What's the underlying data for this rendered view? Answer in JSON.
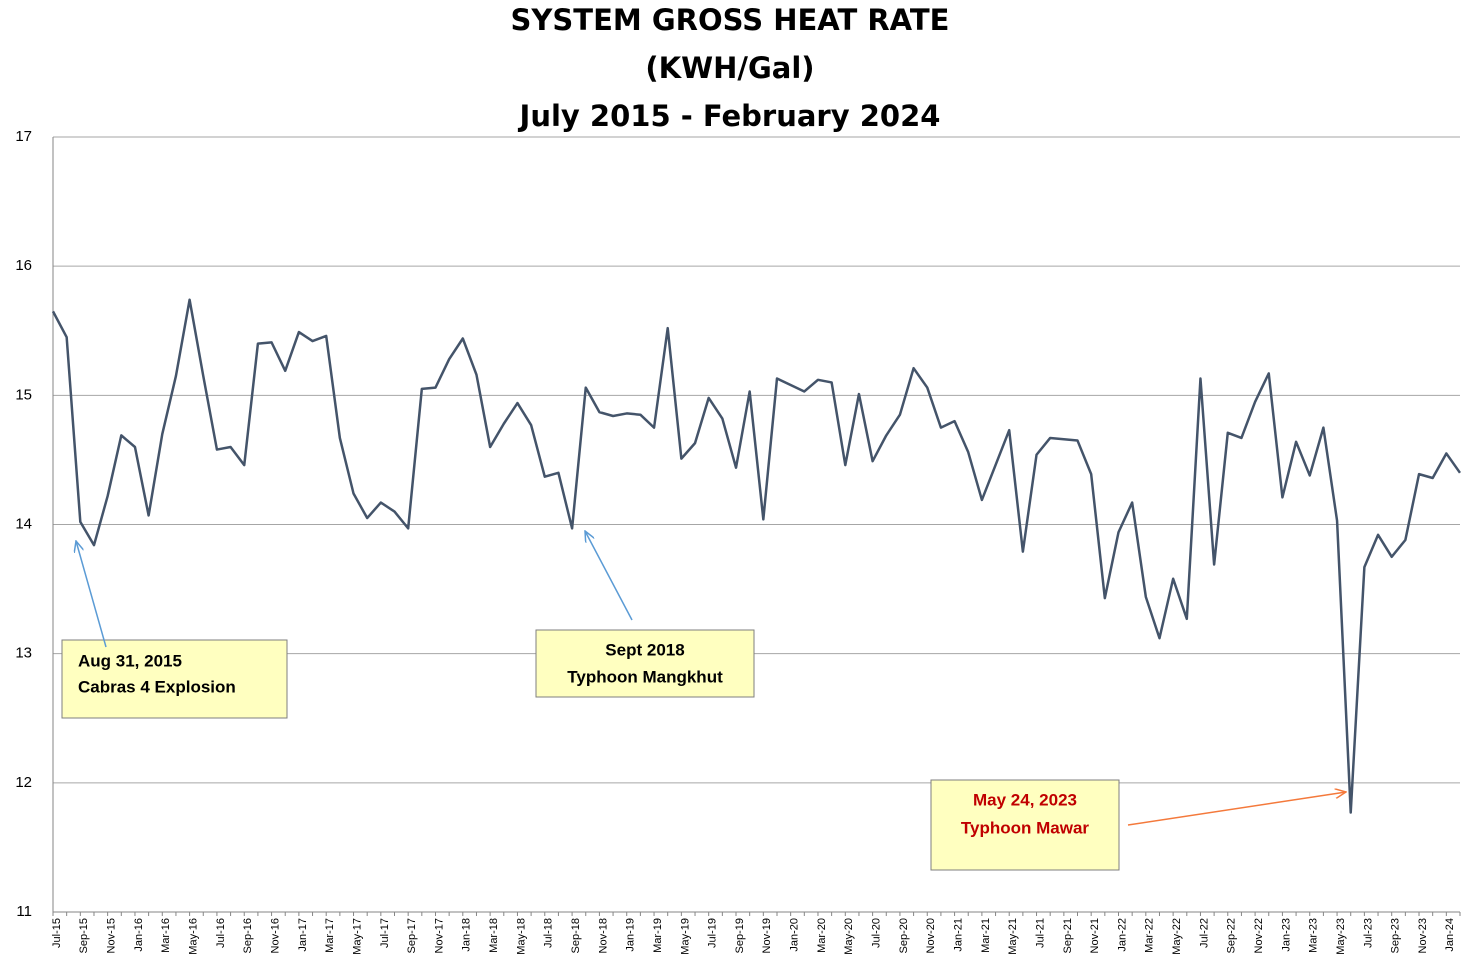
{
  "chart_data": {
    "type": "line",
    "title": [
      "SYSTEM GROSS HEAT RATE",
      "(KWH/Gal)",
      "July 2015 - February 2024"
    ],
    "categories": [
      "Jul-15",
      null,
      "Sep-15",
      null,
      "Nov-15",
      null,
      "Jan-16",
      null,
      "Mar-16",
      null,
      "May-16",
      null,
      "Jul-16",
      null,
      "Sep-16",
      null,
      "Nov-16",
      null,
      "Jan-17",
      null,
      "Mar-17",
      null,
      "May-17",
      null,
      "Jul-17",
      null,
      "Sep-17",
      null,
      "Nov-17",
      null,
      "Jan-18",
      null,
      "Mar-18",
      null,
      "May-18",
      null,
      "Jul-18",
      null,
      "Sep-18",
      null,
      "Nov-18",
      null,
      "Jan-19",
      null,
      "Mar-19",
      null,
      "May-19",
      null,
      "Jul-19",
      null,
      "Sep-19",
      null,
      "Nov-19",
      null,
      "Jan-20",
      null,
      "Mar-20",
      null,
      "May-20",
      null,
      "Jul-20",
      null,
      "Sep-20",
      null,
      "Nov-20",
      null,
      "Jan-21",
      null,
      "Mar-21",
      null,
      "May-21",
      null,
      "Jul-21",
      null,
      "Sep-21",
      null,
      "Nov-21",
      null,
      "Jan-22",
      null,
      "Mar-22",
      null,
      "May-22",
      null,
      "Jul-22",
      null,
      "Sep-22",
      null,
      "Nov-22",
      null,
      "Jan-23",
      null,
      "Mar-23",
      null,
      "May-23",
      null,
      "Jul-23",
      null,
      "Sep-23",
      null,
      "Nov-23",
      null,
      "Jan-24",
      null
    ],
    "series": [
      {
        "color": "#44546a",
        "values": [
          15.65,
          15.45,
          14.02,
          13.84,
          14.22,
          14.69,
          14.6,
          14.07,
          14.7,
          15.15,
          15.74,
          15.15,
          14.58,
          14.6,
          14.46,
          15.4,
          15.41,
          15.19,
          15.49,
          15.42,
          15.46,
          14.67,
          14.24,
          14.05,
          14.17,
          14.1,
          13.97,
          15.05,
          15.06,
          15.28,
          15.44,
          15.16,
          14.6,
          14.78,
          14.94,
          14.77,
          14.37,
          14.4,
          13.97,
          15.06,
          14.87,
          14.84,
          14.86,
          14.85,
          14.75,
          15.52,
          14.51,
          14.63,
          14.98,
          14.82,
          14.44,
          15.03,
          14.04,
          15.13,
          15.08,
          15.03,
          15.12,
          15.1,
          14.46,
          15.01,
          14.49,
          14.69,
          14.85,
          15.21,
          15.06,
          14.75,
          14.8,
          14.56,
          14.19,
          14.46,
          14.73,
          13.79,
          14.54,
          14.67,
          14.66,
          14.65,
          14.39,
          13.43,
          13.94,
          14.17,
          13.44,
          13.12,
          13.58,
          13.27,
          15.13,
          13.69,
          14.71,
          14.67,
          14.95,
          15.17,
          14.21,
          14.64,
          14.38,
          14.75,
          14.03,
          11.77,
          13.67,
          13.92,
          13.75,
          13.88,
          14.39,
          14.36,
          14.55,
          14.4
        ]
      }
    ],
    "ylim": [
      11,
      17
    ],
    "yticks": [
      11,
      12,
      13,
      14,
      15,
      16,
      17
    ],
    "grid": true,
    "annotations": [
      {
        "lines": [
          "Aug 31, 2015",
          "Cabras 4 Explosion"
        ],
        "color": "#000000",
        "arrow_color": "#5b9bd5"
      },
      {
        "lines": [
          "Sept 2018",
          "Typhoon Mangkhut"
        ],
        "color": "#000000",
        "arrow_color": "#5b9bd5"
      },
      {
        "lines": [
          "May 24, 2023",
          "Typhoon Mawar"
        ],
        "color": "#c00000",
        "arrow_color": "#f4793b"
      }
    ]
  }
}
